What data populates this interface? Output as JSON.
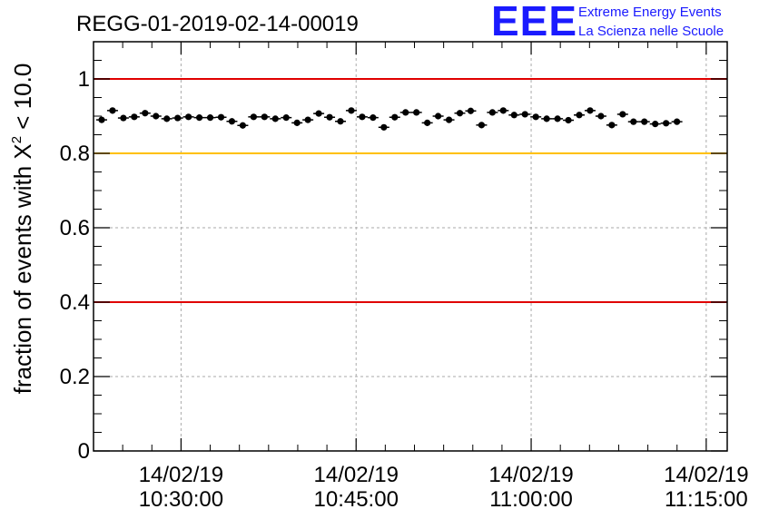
{
  "chart_data": {
    "type": "scatter",
    "title": "REGG-01-2019-02-14-00019",
    "ylabel_prefix": "fraction of events with ",
    "ylabel_symbol": "X",
    "ylabel_superscript": "2",
    "ylabel_suffix": " < 10.0",
    "xlabel": "",
    "ylim": [
      0,
      1.1
    ],
    "xlim_minutes": [
      22.5,
      76.8
    ],
    "y_ticks": [
      {
        "value": 0,
        "label": "0"
      },
      {
        "value": 0.2,
        "label": "0.2"
      },
      {
        "value": 0.4,
        "label": "0.4"
      },
      {
        "value": 0.6,
        "label": "0.6"
      },
      {
        "value": 0.8,
        "label": "0.8"
      },
      {
        "value": 1,
        "label": "1"
      }
    ],
    "x_ticks": [
      {
        "minutes": 30,
        "date": "14/02/19",
        "time": "10:30:00"
      },
      {
        "minutes": 45,
        "date": "14/02/19",
        "time": "10:45:00"
      },
      {
        "minutes": 60,
        "date": "14/02/19",
        "time": "11:00:00"
      },
      {
        "minutes": 75,
        "date": "14/02/19",
        "time": "11:15:00"
      }
    ],
    "reference_lines": [
      {
        "value": 1.0,
        "color": "#e00000"
      },
      {
        "value": 0.8,
        "color": "#ffc000"
      },
      {
        "value": 0.4,
        "color": "#e00000"
      }
    ],
    "grid": true,
    "series": [
      {
        "name": "fraction",
        "color": "#000000",
        "x_start_minutes": 23.2,
        "x_step_minutes": 0.93,
        "values": [
          0.89,
          0.915,
          0.895,
          0.898,
          0.908,
          0.9,
          0.893,
          0.895,
          0.898,
          0.896,
          0.896,
          0.897,
          0.886,
          0.875,
          0.898,
          0.898,
          0.893,
          0.896,
          0.882,
          0.89,
          0.907,
          0.897,
          0.886,
          0.915,
          0.898,
          0.896,
          0.87,
          0.897,
          0.91,
          0.91,
          0.882,
          0.9,
          0.89,
          0.908,
          0.914,
          0.876,
          0.91,
          0.915,
          0.903,
          0.905,
          0.898,
          0.893,
          0.893,
          0.889,
          0.903,
          0.915,
          0.9,
          0.876,
          0.905,
          0.885,
          0.885,
          0.879,
          0.881,
          0.885
        ],
        "error": 0.008
      }
    ]
  },
  "logo": {
    "text": "EEE",
    "line1": "Extreme Energy Events",
    "line2": "La Scienza nelle Scuole",
    "color": "#1a1aff"
  }
}
